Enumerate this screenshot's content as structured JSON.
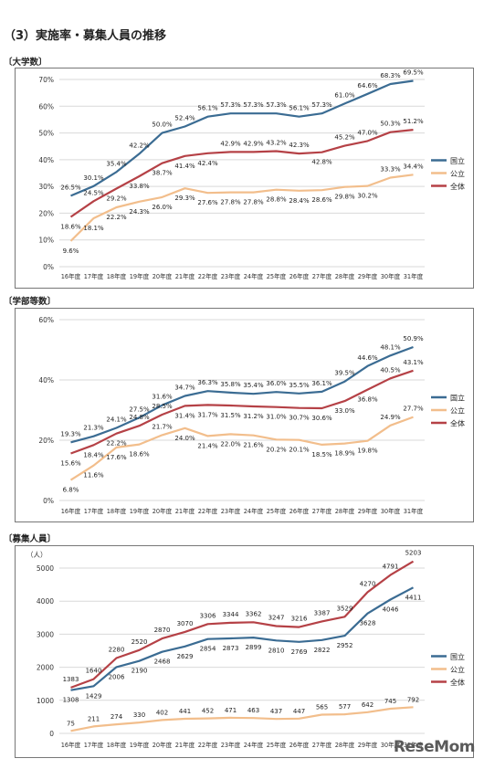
{
  "page": {
    "title": "（3）実施率・募集人員の推移",
    "watermark": "ReseMom"
  },
  "chart_data": [
    {
      "type": "line",
      "section_label": "〔大学数〕",
      "categories": [
        "16年度",
        "17年度",
        "18年度",
        "19年度",
        "20年度",
        "21年度",
        "22年度",
        "23年度",
        "24年度",
        "25年度",
        "26年度",
        "27年度",
        "28年度",
        "29年度",
        "30年度",
        "31年度"
      ],
      "ylim": [
        0,
        70
      ],
      "yticks": [
        0,
        10,
        20,
        30,
        40,
        50,
        60,
        70
      ],
      "ytick_labels": [
        "0%",
        "10%",
        "20%",
        "30%",
        "40%",
        "50%",
        "60%",
        "70%"
      ],
      "legend": "right",
      "series": [
        {
          "name": "国立",
          "color": "#3b6c93",
          "values": [
            26.5,
            30.1,
            35.4,
            42.2,
            50.0,
            52.4,
            56.1,
            57.3,
            57.3,
            57.3,
            56.1,
            57.3,
            61.0,
            64.6,
            68.3,
            69.5
          ],
          "labels": [
            "26.5%",
            "30.1%",
            "35.4%",
            "42.2%",
            "50.0%",
            "52.4%",
            "56.1%",
            "57.3%",
            "57.3%",
            "57.3%",
            "56.1%",
            "57.3%",
            "61.0%",
            "64.6%",
            "68.3%",
            "69.5%"
          ]
        },
        {
          "name": "公立",
          "color": "#f2be8c",
          "values": [
            9.6,
            18.1,
            22.2,
            24.3,
            26.0,
            29.3,
            27.6,
            27.8,
            27.8,
            28.8,
            28.4,
            28.6,
            29.8,
            30.2,
            33.3,
            34.4
          ],
          "labels": [
            "9.6%",
            "18.1%",
            "22.2%",
            "24.3%",
            "26.0%",
            "29.3%",
            "27.6%",
            "27.8%",
            "27.8%",
            "28.8%",
            "28.4%",
            "28.6%",
            "29.8%",
            "30.2%",
            "33.3%",
            "34.4%"
          ]
        },
        {
          "name": "全体",
          "color": "#b54146",
          "values": [
            18.6,
            24.5,
            29.2,
            33.8,
            38.7,
            41.4,
            42.4,
            42.9,
            42.9,
            43.2,
            42.3,
            42.8,
            45.2,
            47.0,
            50.3,
            51.2
          ],
          "labels": [
            "18.6%",
            "24.5%",
            "29.2%",
            "33.8%",
            "38.7%",
            "41.4%",
            "42.4%",
            "42.9%",
            "42.9%",
            "43.2%",
            "42.3%",
            "42.8%",
            "45.2%",
            "47.0%",
            "50.3%",
            "51.2%"
          ]
        }
      ]
    },
    {
      "type": "line",
      "section_label": "〔学部等数〕",
      "categories": [
        "16年度",
        "17年度",
        "18年度",
        "19年度",
        "20年度",
        "21年度",
        "22年度",
        "23年度",
        "24年度",
        "25年度",
        "26年度",
        "27年度",
        "28年度",
        "29年度",
        "30年度",
        "31年度"
      ],
      "ylim": [
        0,
        60
      ],
      "yticks": [
        0,
        20,
        40,
        60
      ],
      "ytick_labels": [
        "0%",
        "20%",
        "40%",
        "60%"
      ],
      "legend": "right",
      "series": [
        {
          "name": "国立",
          "color": "#3b6c93",
          "values": [
            19.3,
            21.3,
            24.1,
            27.5,
            31.6,
            34.7,
            36.3,
            35.8,
            35.4,
            36.0,
            35.5,
            36.1,
            39.5,
            44.6,
            48.1,
            50.9
          ],
          "labels": [
            "19.3%",
            "21.3%",
            "24.1%",
            "27.5%",
            "31.6%",
            "34.7%",
            "36.3%",
            "35.8%",
            "35.4%",
            "36.0%",
            "35.5%",
            "36.1%",
            "39.5%",
            "44.6%",
            "48.1%",
            "50.9%"
          ]
        },
        {
          "name": "公立",
          "color": "#f2be8c",
          "values": [
            6.8,
            11.6,
            17.6,
            18.6,
            21.7,
            24.0,
            21.4,
            22.0,
            21.6,
            20.2,
            20.1,
            18.5,
            18.9,
            19.8,
            24.9,
            27.7
          ],
          "labels": [
            "6.8%",
            "11.6%",
            "17.6%",
            "18.6%",
            "21.7%",
            "24.0%",
            "21.4%",
            "22.0%",
            "21.6%",
            "20.2%",
            "20.1%",
            "18.5%",
            "18.9%",
            "19.8%",
            "24.9%",
            "27.7%"
          ]
        },
        {
          "name": "全体",
          "color": "#b54146",
          "values": [
            15.6,
            18.4,
            22.2,
            24.8,
            28.5,
            31.4,
            31.7,
            31.5,
            31.2,
            31.0,
            30.7,
            30.6,
            33.0,
            36.8,
            40.5,
            43.1
          ],
          "labels": [
            "15.6%",
            "18.4%",
            "22.2%",
            "24.8%",
            "28.5%",
            "31.4%",
            "31.7%",
            "31.5%",
            "31.2%",
            "31.0%",
            "30.7%",
            "30.6%",
            "33.0%",
            "36.8%",
            "40.5%",
            "43.1%"
          ]
        }
      ]
    },
    {
      "type": "line",
      "section_label": "〔募集人員〕",
      "unit_label": "（人）",
      "categories": [
        "16年度",
        "17年度",
        "18年度",
        "19年度",
        "20年度",
        "21年度",
        "22年度",
        "23年度",
        "24年度",
        "25年度",
        "26年度",
        "27年度",
        "28年度",
        "29年度",
        "30年度",
        "31年度"
      ],
      "ylim": [
        0,
        5000
      ],
      "yticks": [
        0,
        1000,
        2000,
        3000,
        4000,
        5000
      ],
      "ytick_labels": [
        "0",
        "1000",
        "2000",
        "3000",
        "4000",
        "5000"
      ],
      "legend": "right",
      "series": [
        {
          "name": "国立",
          "color": "#3b6c93",
          "values": [
            1308,
            1429,
            2006,
            2190,
            2468,
            2629,
            2854,
            2873,
            2899,
            2810,
            2769,
            2822,
            2952,
            3628,
            4046,
            4411
          ],
          "labels": [
            "1308",
            "1429",
            "2006",
            "2190",
            "2468",
            "2629",
            "2854",
            "2873",
            "2899",
            "2810",
            "2769",
            "2822",
            "2952",
            "3628",
            "4046",
            "4411"
          ]
        },
        {
          "name": "公立",
          "color": "#f2be8c",
          "values": [
            75,
            211,
            274,
            330,
            402,
            441,
            452,
            471,
            463,
            437,
            447,
            565,
            577,
            642,
            745,
            792
          ],
          "labels": [
            "75",
            "211",
            "274",
            "330",
            "402",
            "441",
            "452",
            "471",
            "463",
            "437",
            "447",
            "565",
            "577",
            "642",
            "745",
            "792"
          ]
        },
        {
          "name": "全体",
          "color": "#b54146",
          "values": [
            1383,
            1640,
            2280,
            2520,
            2870,
            3070,
            3306,
            3344,
            3362,
            3247,
            3216,
            3387,
            3529,
            4270,
            4791,
            5203
          ],
          "labels": [
            "1383",
            "1640",
            "2280",
            "2520",
            "2870",
            "3070",
            "3306",
            "3344",
            "3362",
            "3247",
            "3216",
            "3387",
            "3529",
            "4270",
            "4791",
            "5203"
          ]
        }
      ]
    }
  ]
}
